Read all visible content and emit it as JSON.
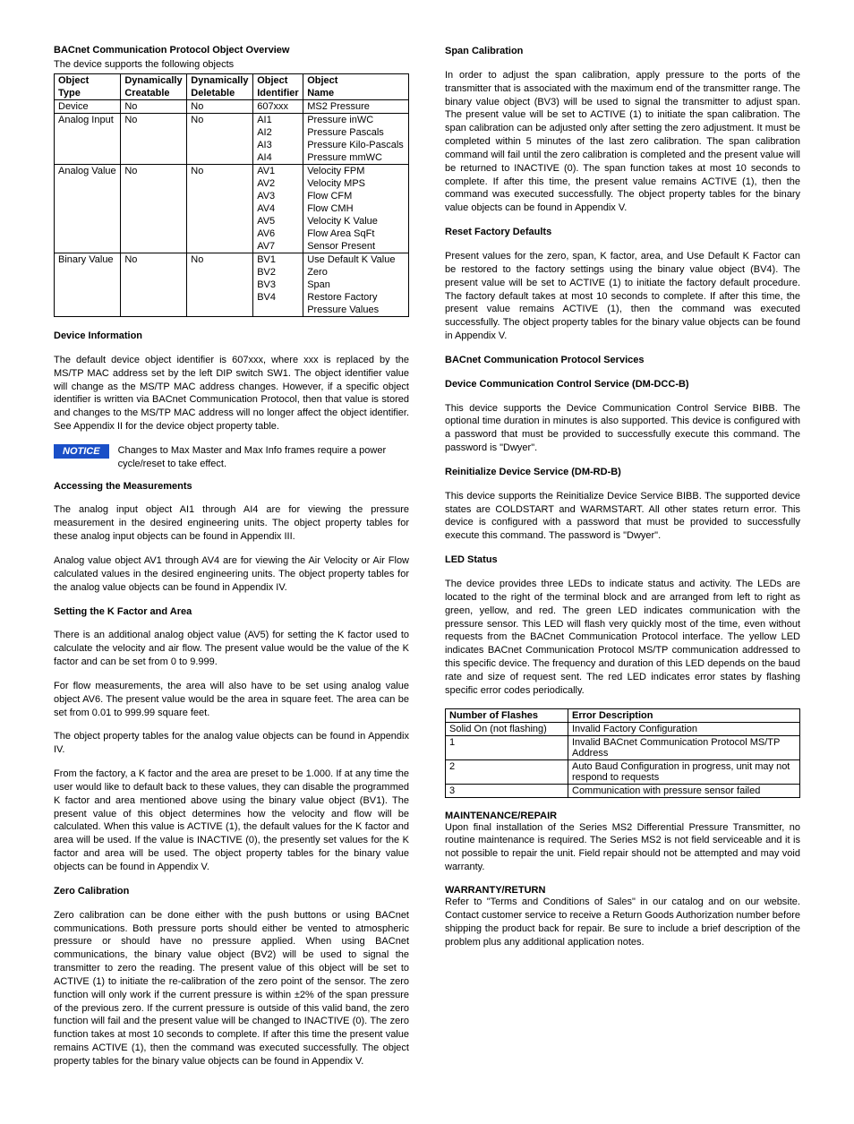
{
  "left": {
    "overview_title": "BACnet Communication Protocol Object Overview",
    "overview_sub": "The device supports the following objects",
    "table1": {
      "headers": {
        "c1a": "Object",
        "c1b": "Type",
        "c2a": "Dynamically",
        "c2b": "Creatable",
        "c3a": "Dynamically",
        "c3b": "Deletable",
        "c4a": "Object",
        "c4b": "Identifier",
        "c5a": "Object",
        "c5b": "Name"
      },
      "rows": [
        {
          "t": "Device",
          "c": "No",
          "d": "No",
          "id": "607xxx",
          "n": "MS2 Pressure",
          "first": true,
          "last": true
        },
        {
          "t": "Analog Input",
          "c": "No",
          "d": "No",
          "id": "AI1",
          "n": "Pressure inWC",
          "first": true
        },
        {
          "t": "",
          "c": "",
          "d": "",
          "id": "AI2",
          "n": "Pressure Pascals"
        },
        {
          "t": "",
          "c": "",
          "d": "",
          "id": "AI3",
          "n": "Pressure Kilo-Pascals"
        },
        {
          "t": "",
          "c": "",
          "d": "",
          "id": "AI4",
          "n": "Pressure mmWC",
          "last": true
        },
        {
          "t": "Analog Value",
          "c": "No",
          "d": "No",
          "id": "AV1",
          "n": "Velocity FPM",
          "first": true
        },
        {
          "t": "",
          "c": "",
          "d": "",
          "id": "AV2",
          "n": "Velocity MPS"
        },
        {
          "t": "",
          "c": "",
          "d": "",
          "id": "AV3",
          "n": "Flow CFM"
        },
        {
          "t": "",
          "c": "",
          "d": "",
          "id": "AV4",
          "n": "Flow CMH"
        },
        {
          "t": "",
          "c": "",
          "d": "",
          "id": "AV5",
          "n": "Velocity K Value"
        },
        {
          "t": "",
          "c": "",
          "d": "",
          "id": "AV6",
          "n": "Flow Area SqFt"
        },
        {
          "t": "",
          "c": "",
          "d": "",
          "id": "AV7",
          "n": "Sensor Present",
          "last": true
        },
        {
          "t": "Binary Value",
          "c": "No",
          "d": "No",
          "id": "BV1",
          "n": "Use Default K Value",
          "first": true
        },
        {
          "t": "",
          "c": "",
          "d": "",
          "id": "BV2",
          "n": "Zero"
        },
        {
          "t": "",
          "c": "",
          "d": "",
          "id": "BV3",
          "n": "Span"
        },
        {
          "t": "",
          "c": "",
          "d": "",
          "id": "BV4",
          "n": "Restore Factory"
        },
        {
          "t": "",
          "c": "",
          "d": "",
          "id": "",
          "n": "Pressure Values",
          "last": true
        }
      ]
    },
    "device_info_h": "Device Information",
    "device_info_p": "The default device object identifier is 607xxx, where xxx is replaced by the MS/TP MAC address set by the left DIP switch SW1. The object identifier value will change as the MS/TP MAC address changes. However, if a specific object identifier is written via BACnet Communication Protocol, then that value is stored and changes to the MS/TP MAC address will no longer affect the object identifier. See Appendix II for the device object property table.",
    "notice_label": "NOTICE",
    "notice_text": "Changes to Max Master and Max Info frames require a power cycle/reset to take effect.",
    "access_h": "Accessing the Measurements",
    "access_p1": "The analog input object AI1 through AI4 are for viewing the pressure measurement in the desired engineering units. The object property tables for these analog input objects can be found in Appendix III.",
    "access_p2": "Analog value object AV1 through AV4 are for viewing the Air Velocity or Air Flow calculated values in the desired engineering units. The object property tables for the analog value objects can be found in Appendix IV.",
    "kfactor_h": "Setting the K Factor and Area",
    "kfactor_p1": "There is an additional analog object value (AV5) for setting the K factor used to calculate the velocity and air flow. The present value would be the value of the K factor and can be set from 0 to 9.999.",
    "kfactor_p2": "For flow measurements, the area will also have to be set using analog value object AV6. The present value would be the area in square feet. The area can be set from 0.01 to 999.99 square feet.",
    "kfactor_p3": "The object property tables for the analog value objects can be found in Appendix IV.",
    "kfactor_p4": "From the factory, a K factor and the area are preset to be 1.000. If at any time the user would like to default back to these values, they can disable the programmed K factor and area mentioned above using the binary value object (BV1). The present value of this object determines how the velocity and flow will be calculated. When this value is ACTIVE (1), the default values for the K factor and area will be used. If the value is INACTIVE (0), the presently set values for the K factor and area will be used. The object property tables for the binary value objects can be found in Appendix V.",
    "zero_h": "Zero Calibration",
    "zero_p": "Zero calibration can be done either with the push buttons or using BACnet communications. Both pressure ports should either be vented to atmospheric pressure or should have no pressure applied. When using BACnet communications, the binary value object (BV2) will be used to signal the transmitter to zero the reading. The present value of this object will be set to ACTIVE (1) to initiate the re-calibration of the zero point of the sensor. The zero function will only work if the current pressure is within ±2% of the span pressure of the previous zero. If the current pressure is outside of this valid band, the zero function will fail and the present value will be changed to INACTIVE (0). The zero function takes at most 10 seconds to complete. If after this time the present value remains ACTIVE (1), then the command was executed successfully. The object property tables for the binary value objects can be found in Appendix V."
  },
  "right": {
    "span_h": "Span Calibration",
    "span_p": "In order to adjust the span calibration, apply pressure to the ports of the transmitter that is associated with the maximum end of the transmitter range. The binary value object (BV3) will be used to signal the transmitter to adjust span. The present value will be set to ACTIVE (1) to initiate the span calibration. The span calibration can be adjusted only after setting the zero adjustment. It must be completed within 5 minutes of the last zero calibration. The span calibration command will fail until the zero calibration is completed and the present value will be returned to INACTIVE (0). The span function takes at most 10 seconds to complete. If after this time, the present value remains ACTIVE (1), then the command was executed successfully. The object property tables for the binary value objects can be found in Appendix V.",
    "reset_h": "Reset Factory Defaults",
    "reset_p": "Present values for the zero, span, K factor, area, and Use Default K Factor can be restored to the factory settings using the binary value object (BV4). The present value will be set to ACTIVE (1) to initiate the factory default procedure. The factory default takes at most 10 seconds to complete. If after this time, the present value remains ACTIVE (1), then the command was executed successfully. The object property tables for the binary value objects can be found in Appendix V.",
    "services_h": "BACnet Communication Protocol Services",
    "dccb_h": "Device Communication Control Service (DM-DCC-B)",
    "dccb_p": "This device supports the Device Communication Control Service BIBB. The optional time duration in minutes is also supported. This device is configured with a password that must be provided to successfully execute this command. The password is \"Dwyer\".",
    "reinit_h": "Reinitialize Device Service (DM-RD-B)",
    "reinit_p": "This device supports the Reinitialize Device Service BIBB. The supported device states are COLDSTART and WARMSTART. All other states return error. This device is configured with a password that must be provided to successfully execute this command. The password is \"Dwyer\".",
    "led_h": "LED Status",
    "led_p": "The device provides three LEDs to indicate status and activity. The LEDs are located to the right of the terminal block and are arranged from left to right as green, yellow, and red. The green LED indicates communication with the pressure sensor. This LED will flash very quickly most of the time, even without requests from the BACnet Communication Protocol interface. The yellow LED indicates BACnet Communication Protocol MS/TP communication addressed to this specific device. The frequency and duration of this LED depends on the baud rate and size of request sent. The red LED indicates error states by flashing specific error codes periodically.",
    "table2": {
      "h1": "Number of Flashes",
      "h2": "Error Description",
      "rows": [
        {
          "f": "Solid On (not flashing)",
          "d": "Invalid Factory Configuration"
        },
        {
          "f": "1",
          "d": "Invalid BACnet Communication Protocol MS/TP Address"
        },
        {
          "f": "2",
          "d": "Auto Baud Configuration in progress, unit may not respond to requests"
        },
        {
          "f": "3",
          "d": "Communication with pressure sensor failed"
        }
      ]
    },
    "maint_h": "MAINTENANCE/REPAIR",
    "maint_p": "Upon final  installation of the Series MS2 Differential Pressure Transmitter, no routine maintenance is required. The  Series MS2 is not field  serviceable and it is not possible to repair the unit. Field repair should not be attempted and may void warranty.",
    "warranty_h": "WARRANTY/RETURN",
    "warranty_p": "Refer to \"Terms and Conditions of Sales\" in our catalog and on our website. Contact customer service to receive a Return Goods Authorization number before shipping the product back for repair. Be sure to include a brief description of the problem plus any additional application notes."
  }
}
